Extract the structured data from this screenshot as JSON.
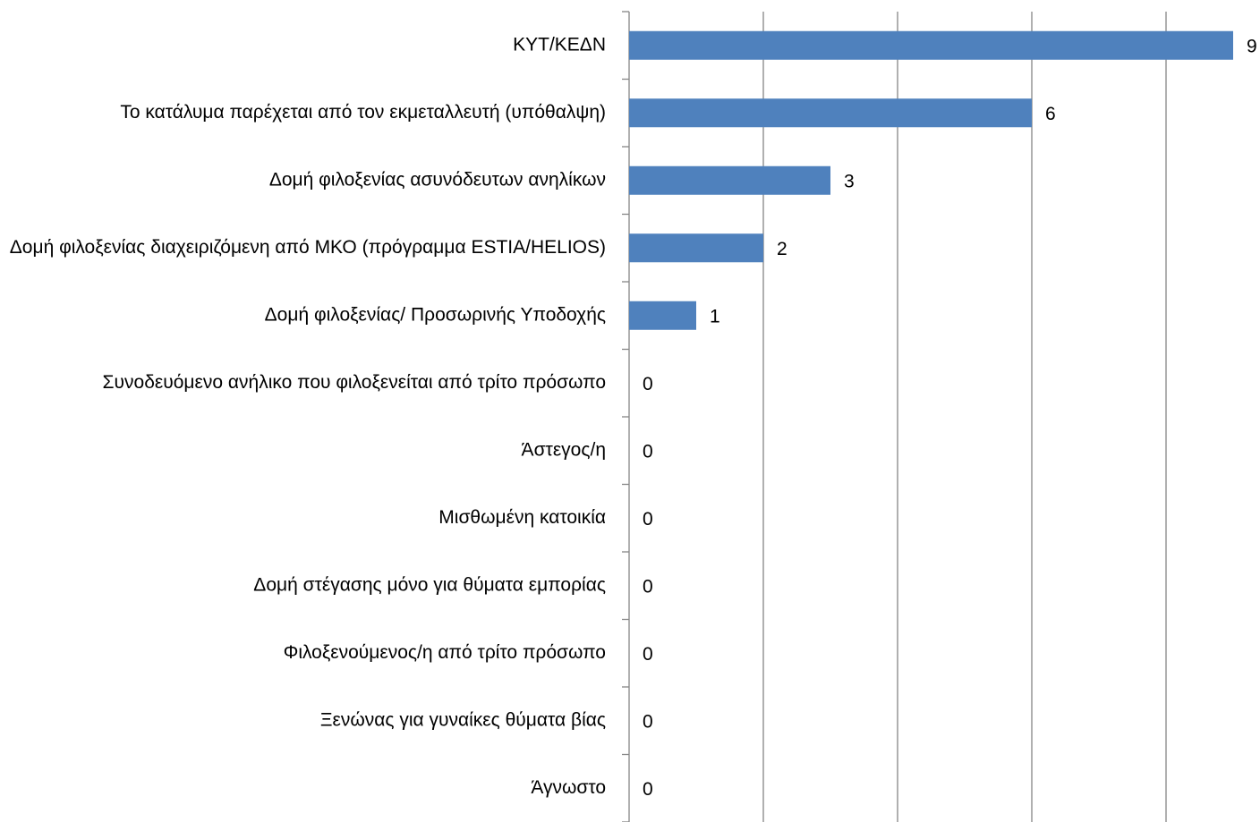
{
  "chart_data": {
    "type": "barh",
    "categories": [
      "ΚΥΤ/ΚΕΔΝ",
      "Το κατάλυμα παρέχεται από τον εκμεταλλευτή (υπόθαλψη)",
      "Δομή φιλοξενίας ασυνόδευτων ανηλίκων",
      "Δομή φιλοξενίας διαχειριζόμενη από ΜΚΟ (πρόγραμμα ESTIA/HELIOS)",
      "Δομή φιλοξενίας/ Προσωρινής Υποδοχής",
      "Συνοδευόμενο ανήλικο που φιλοξενείται από τρίτο πρόσωπο",
      "Άστεγος/η",
      "Μισθωμένη κατοικία",
      "Δομή στέγασης μόνο για θύματα εμπορίας",
      "Φιλοξενούμενος/η από τρίτο πρόσωπο",
      "Ξενώνας για γυναίκες θύματα βίας",
      "Άγνωστο"
    ],
    "values": [
      9,
      6,
      3,
      2,
      1,
      0,
      0,
      0,
      0,
      0,
      0,
      0
    ],
    "color": "#4f81bd",
    "xlim": [
      0,
      9.4
    ],
    "xticks": [
      0,
      2,
      4,
      6,
      8
    ],
    "grid": true
  }
}
